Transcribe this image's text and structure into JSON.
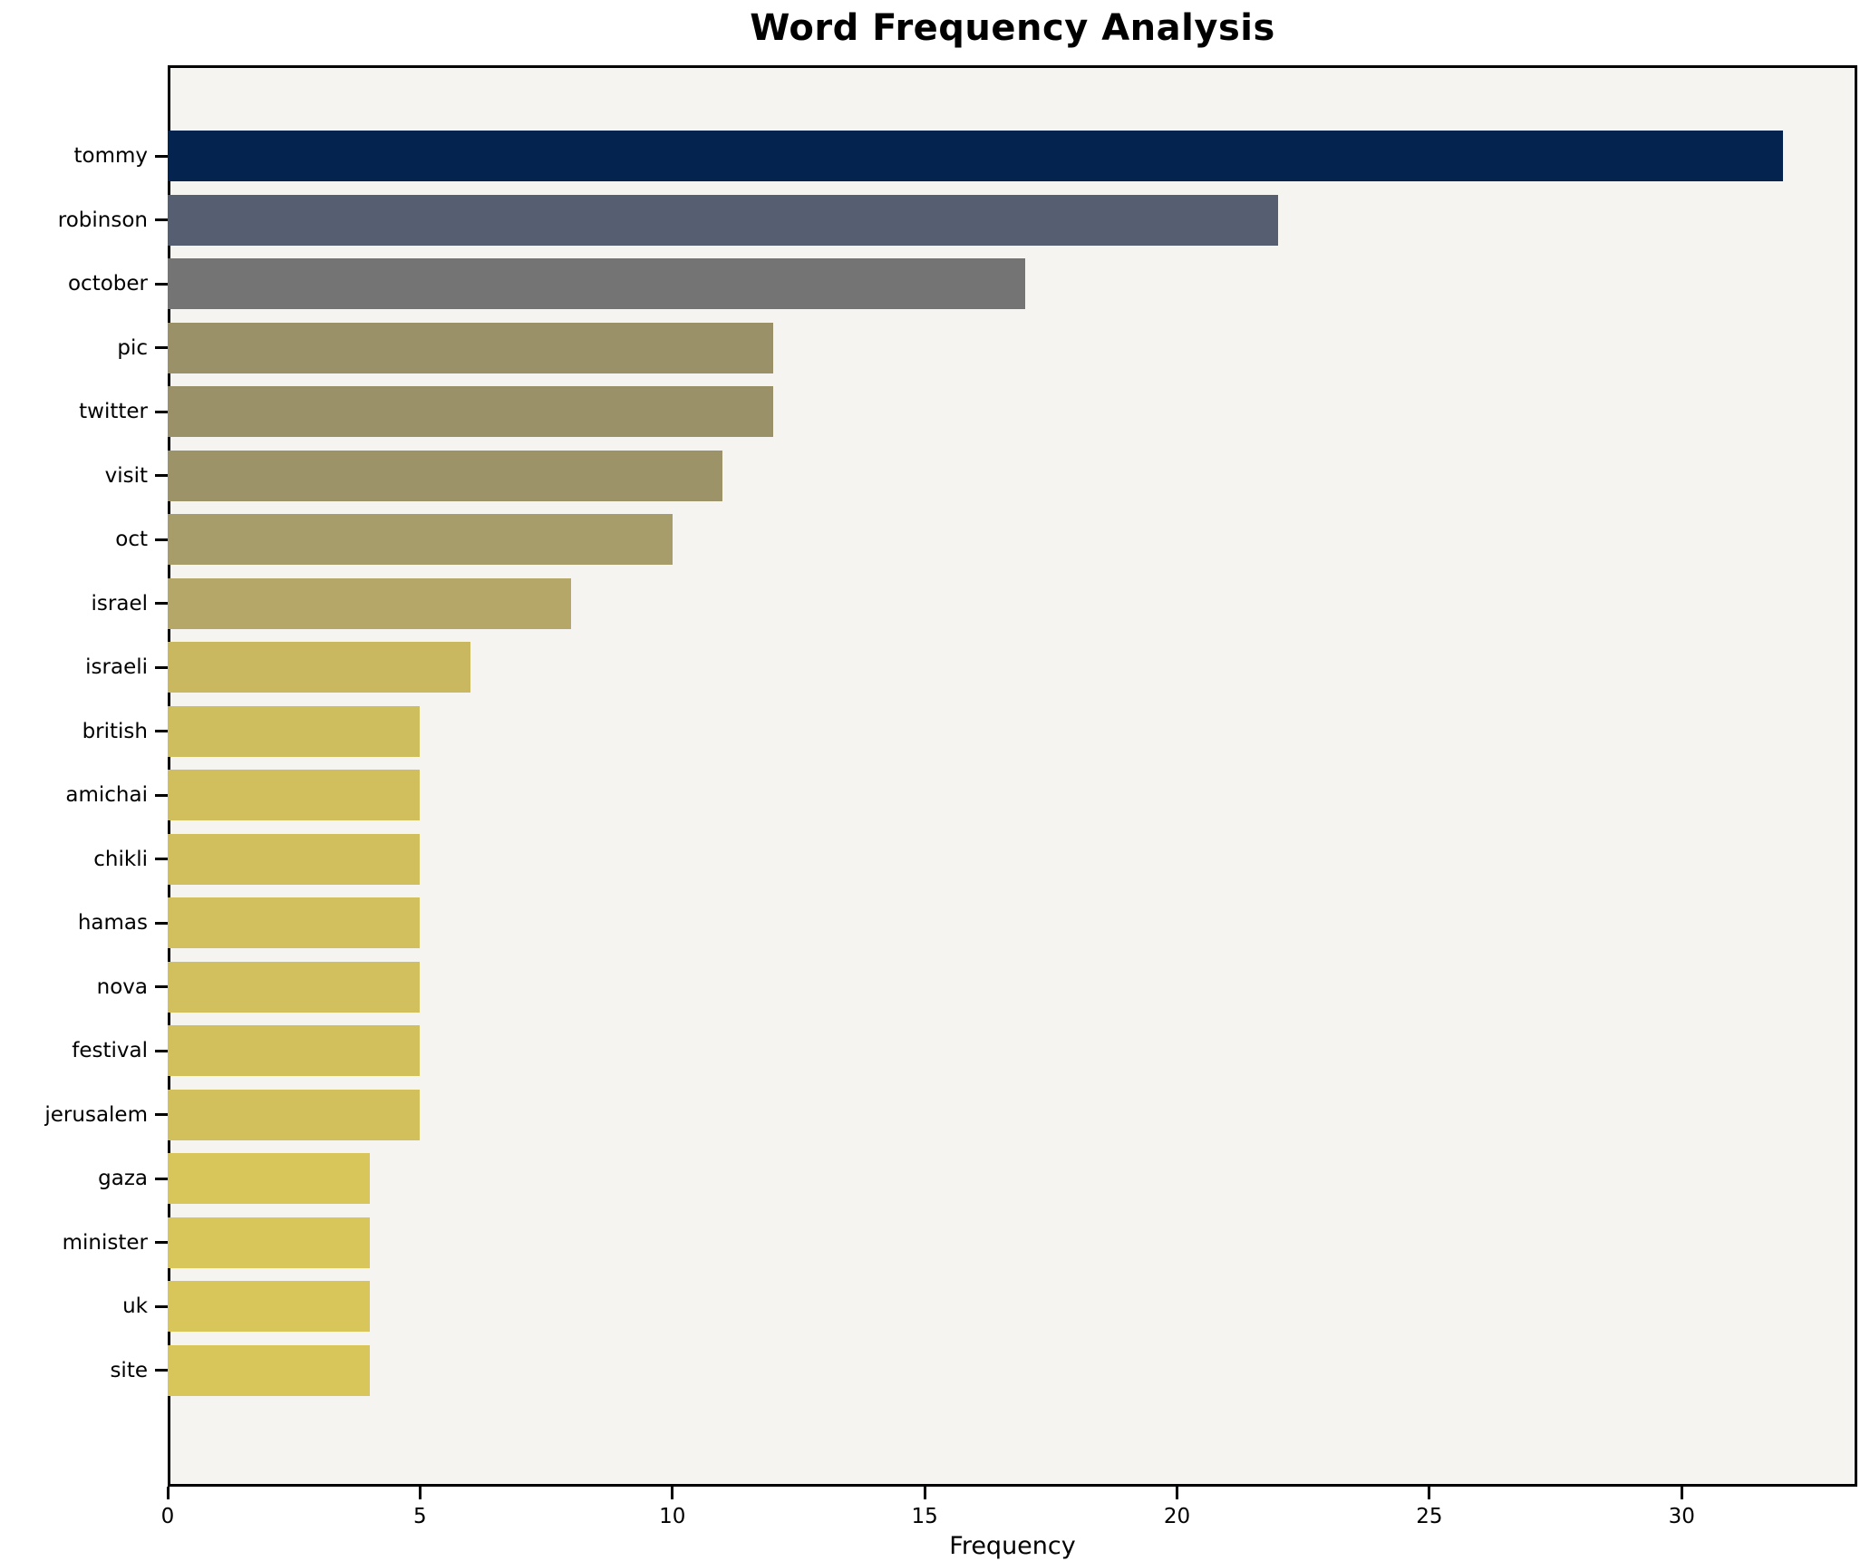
{
  "chart_data": {
    "type": "bar",
    "orientation": "horizontal",
    "title": "Word Frequency Analysis",
    "xlabel": "Frequency",
    "ylabel": "",
    "categories": [
      "tommy",
      "robinson",
      "october",
      "pic",
      "twitter",
      "visit",
      "oct",
      "israel",
      "israeli",
      "british",
      "amichai",
      "chikli",
      "hamas",
      "nova",
      "festival",
      "jerusalem",
      "gaza",
      "minister",
      "uk",
      "site"
    ],
    "values": [
      32,
      22,
      17,
      12,
      12,
      11,
      10,
      8,
      6,
      5,
      5,
      5,
      5,
      5,
      5,
      5,
      4,
      4,
      4,
      4
    ],
    "bar_colors": [
      "#04234e",
      "#565e72",
      "#747474",
      "#9a9169",
      "#9a9169",
      "#9c9369",
      "#a79d6b",
      "#b4a768",
      "#c9b860",
      "#cfbe5e",
      "#d1bf5d",
      "#d1bf5d",
      "#d1c05d",
      "#d1c05d",
      "#d2c05d",
      "#d2c05d",
      "#d8c65a",
      "#d8c65a",
      "#d8c65a",
      "#d8c65a"
    ],
    "xlim": [
      0,
      33.48
    ],
    "xticks": [
      0,
      5,
      10,
      15,
      20,
      25,
      30
    ],
    "grid": false,
    "legend": null,
    "plot_background": "#f5f4f1",
    "figure_background": "#ffffff",
    "spine_color": "#000000",
    "text_color": "#000000"
  }
}
